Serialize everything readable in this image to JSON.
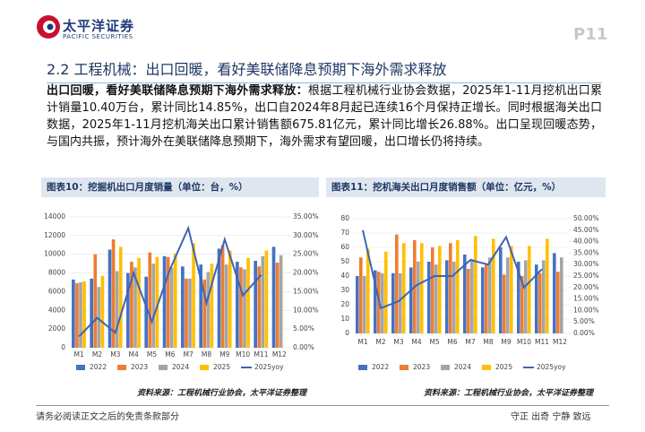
{
  "header": {
    "logo_cn": "太平洋证券",
    "logo_en": "PACIFIC SECURITIES",
    "page": "P11"
  },
  "heading": "2.2 工程机械：出口回暖，看好美联储降息预期下海外需求释放",
  "paragraph": {
    "lead": "出口回暖，看好美联储降息预期下海外需求释放：",
    "body": "根据工程机械行业协会数据，2025年1-11月挖机出口累计销量10.40万台，累计同比14.85%，出口自2024年8月起已连续16个月保持正增长。同时根据海关出口数据，2025年1-11月挖机海关出口累计销售额675.81亿元，累计同比增长26.88%。出口呈现回暖态势，与国内共振，预计海外在美联储降息预期下，海外需求有望回暖，出口增长仍将持续。"
  },
  "chart_data": [
    {
      "type": "bar",
      "title": "图表10：挖掘机出口月度销量（单位：台，%）",
      "source": "资料来源：工程机械行业协会，太平洋证券整理",
      "categories": [
        "M1",
        "M2",
        "M3",
        "M4",
        "M5",
        "M6",
        "M7",
        "M8",
        "M9",
        "M10",
        "M11",
        "M12"
      ],
      "series": [
        {
          "name": "2022",
          "color": "#4472c4",
          "values": [
            7300,
            7400,
            10500,
            8000,
            7600,
            9800,
            8700,
            8900,
            10600,
            9200,
            9300,
            10800
          ]
        },
        {
          "name": "2023",
          "color": "#ed7d31",
          "values": [
            6900,
            10000,
            11600,
            9200,
            10200,
            9700,
            7400,
            7300,
            11000,
            8600,
            8700,
            9100
          ]
        },
        {
          "name": "2024",
          "color": "#a5a5a5",
          "values": [
            7000,
            6500,
            8200,
            8600,
            9000,
            8600,
            7400,
            8100,
            8900,
            8400,
            9800,
            9900
          ]
        },
        {
          "name": "2025",
          "color": "#ffc000",
          "values": [
            7100,
            7700,
            10800,
            9600,
            9700,
            10100,
            11200,
            9000,
            10400,
            9600,
            10400,
            null
          ]
        },
        {
          "name": "2025yoy",
          "color": "#3e64b3",
          "type": "line",
          "axis": "y2",
          "values": [
            3,
            8,
            4,
            20,
            7,
            21,
            32,
            12,
            29,
            14,
            19.5,
            null
          ]
        }
      ],
      "ylim": [
        0,
        14000
      ],
      "yticks": [
        0,
        2000,
        4000,
        6000,
        8000,
        10000,
        12000,
        14000
      ],
      "y2lim": [
        0,
        35
      ],
      "y2ticks": [
        {
          "value": 0,
          "label": "0.00%"
        },
        {
          "value": 5,
          "label": "5.00%"
        },
        {
          "value": 10,
          "label": "10.00%"
        },
        {
          "value": 15,
          "label": "15.00%"
        },
        {
          "value": 20,
          "label": "20.00%"
        },
        {
          "value": 25,
          "label": "25.00%"
        },
        {
          "value": 30,
          "label": "30.00%"
        },
        {
          "value": 35,
          "label": "35.00%"
        }
      ],
      "grid": true,
      "legend": "bottom"
    },
    {
      "type": "bar",
      "title": "图表11：挖机海关出口月度销售额（单位：亿元，%）",
      "source": "资料来源：工程机械行业协会，太平洋证券整理",
      "categories": [
        "M1",
        "M2",
        "M3",
        "M4",
        "M5",
        "M6",
        "M7",
        "M8",
        "M9",
        "M10",
        "M11",
        "M12"
      ],
      "series": [
        {
          "name": "2022",
          "color": "#4472c4",
          "values": [
            40,
            44,
            42,
            46,
            50,
            51,
            55,
            46,
            60,
            50,
            48,
            56
          ]
        },
        {
          "name": "2023",
          "color": "#ed7d31",
          "values": [
            53,
            43,
            69,
            65,
            60,
            63,
            45,
            48,
            41,
            40,
            42,
            43
          ]
        },
        {
          "name": "2024",
          "color": "#a5a5a5",
          "values": [
            40,
            42,
            42,
            50,
            48,
            50,
            52,
            53,
            53,
            51,
            51,
            53
          ]
        },
        {
          "name": "2025",
          "color": "#ffc000",
          "values": [
            59,
            57,
            63,
            63,
            61,
            65,
            68,
            66,
            61,
            61,
            66,
            null
          ]
        },
        {
          "name": "2025yoy",
          "color": "#3e64b3",
          "type": "line",
          "axis": "y2",
          "values": [
            45,
            11,
            14,
            21,
            25,
            25,
            32,
            30,
            42,
            20,
            28,
            null
          ]
        }
      ],
      "ylim": [
        0,
        80
      ],
      "yticks": [
        0,
        10,
        20,
        30,
        40,
        50,
        60,
        70,
        80
      ],
      "y2lim": [
        0,
        50
      ],
      "y2ticks": [
        {
          "value": 0,
          "label": "0.00%"
        },
        {
          "value": 5,
          "label": "5.00%"
        },
        {
          "value": 10,
          "label": "10.00%"
        },
        {
          "value": 15,
          "label": "15.00%"
        },
        {
          "value": 20,
          "label": "20.00%"
        },
        {
          "value": 25,
          "label": "25.00%"
        },
        {
          "value": 30,
          "label": "30.00%"
        },
        {
          "value": 35,
          "label": "35.00%"
        },
        {
          "value": 40,
          "label": "40.00%"
        },
        {
          "value": 45,
          "label": "45.00%"
        },
        {
          "value": 50,
          "label": "50.00%"
        }
      ],
      "grid": true,
      "legend": "bottom"
    }
  ],
  "footer": {
    "left": "请务必阅读正文之后的免责条款部分",
    "right": "守正 出奇 宁静 致远"
  }
}
